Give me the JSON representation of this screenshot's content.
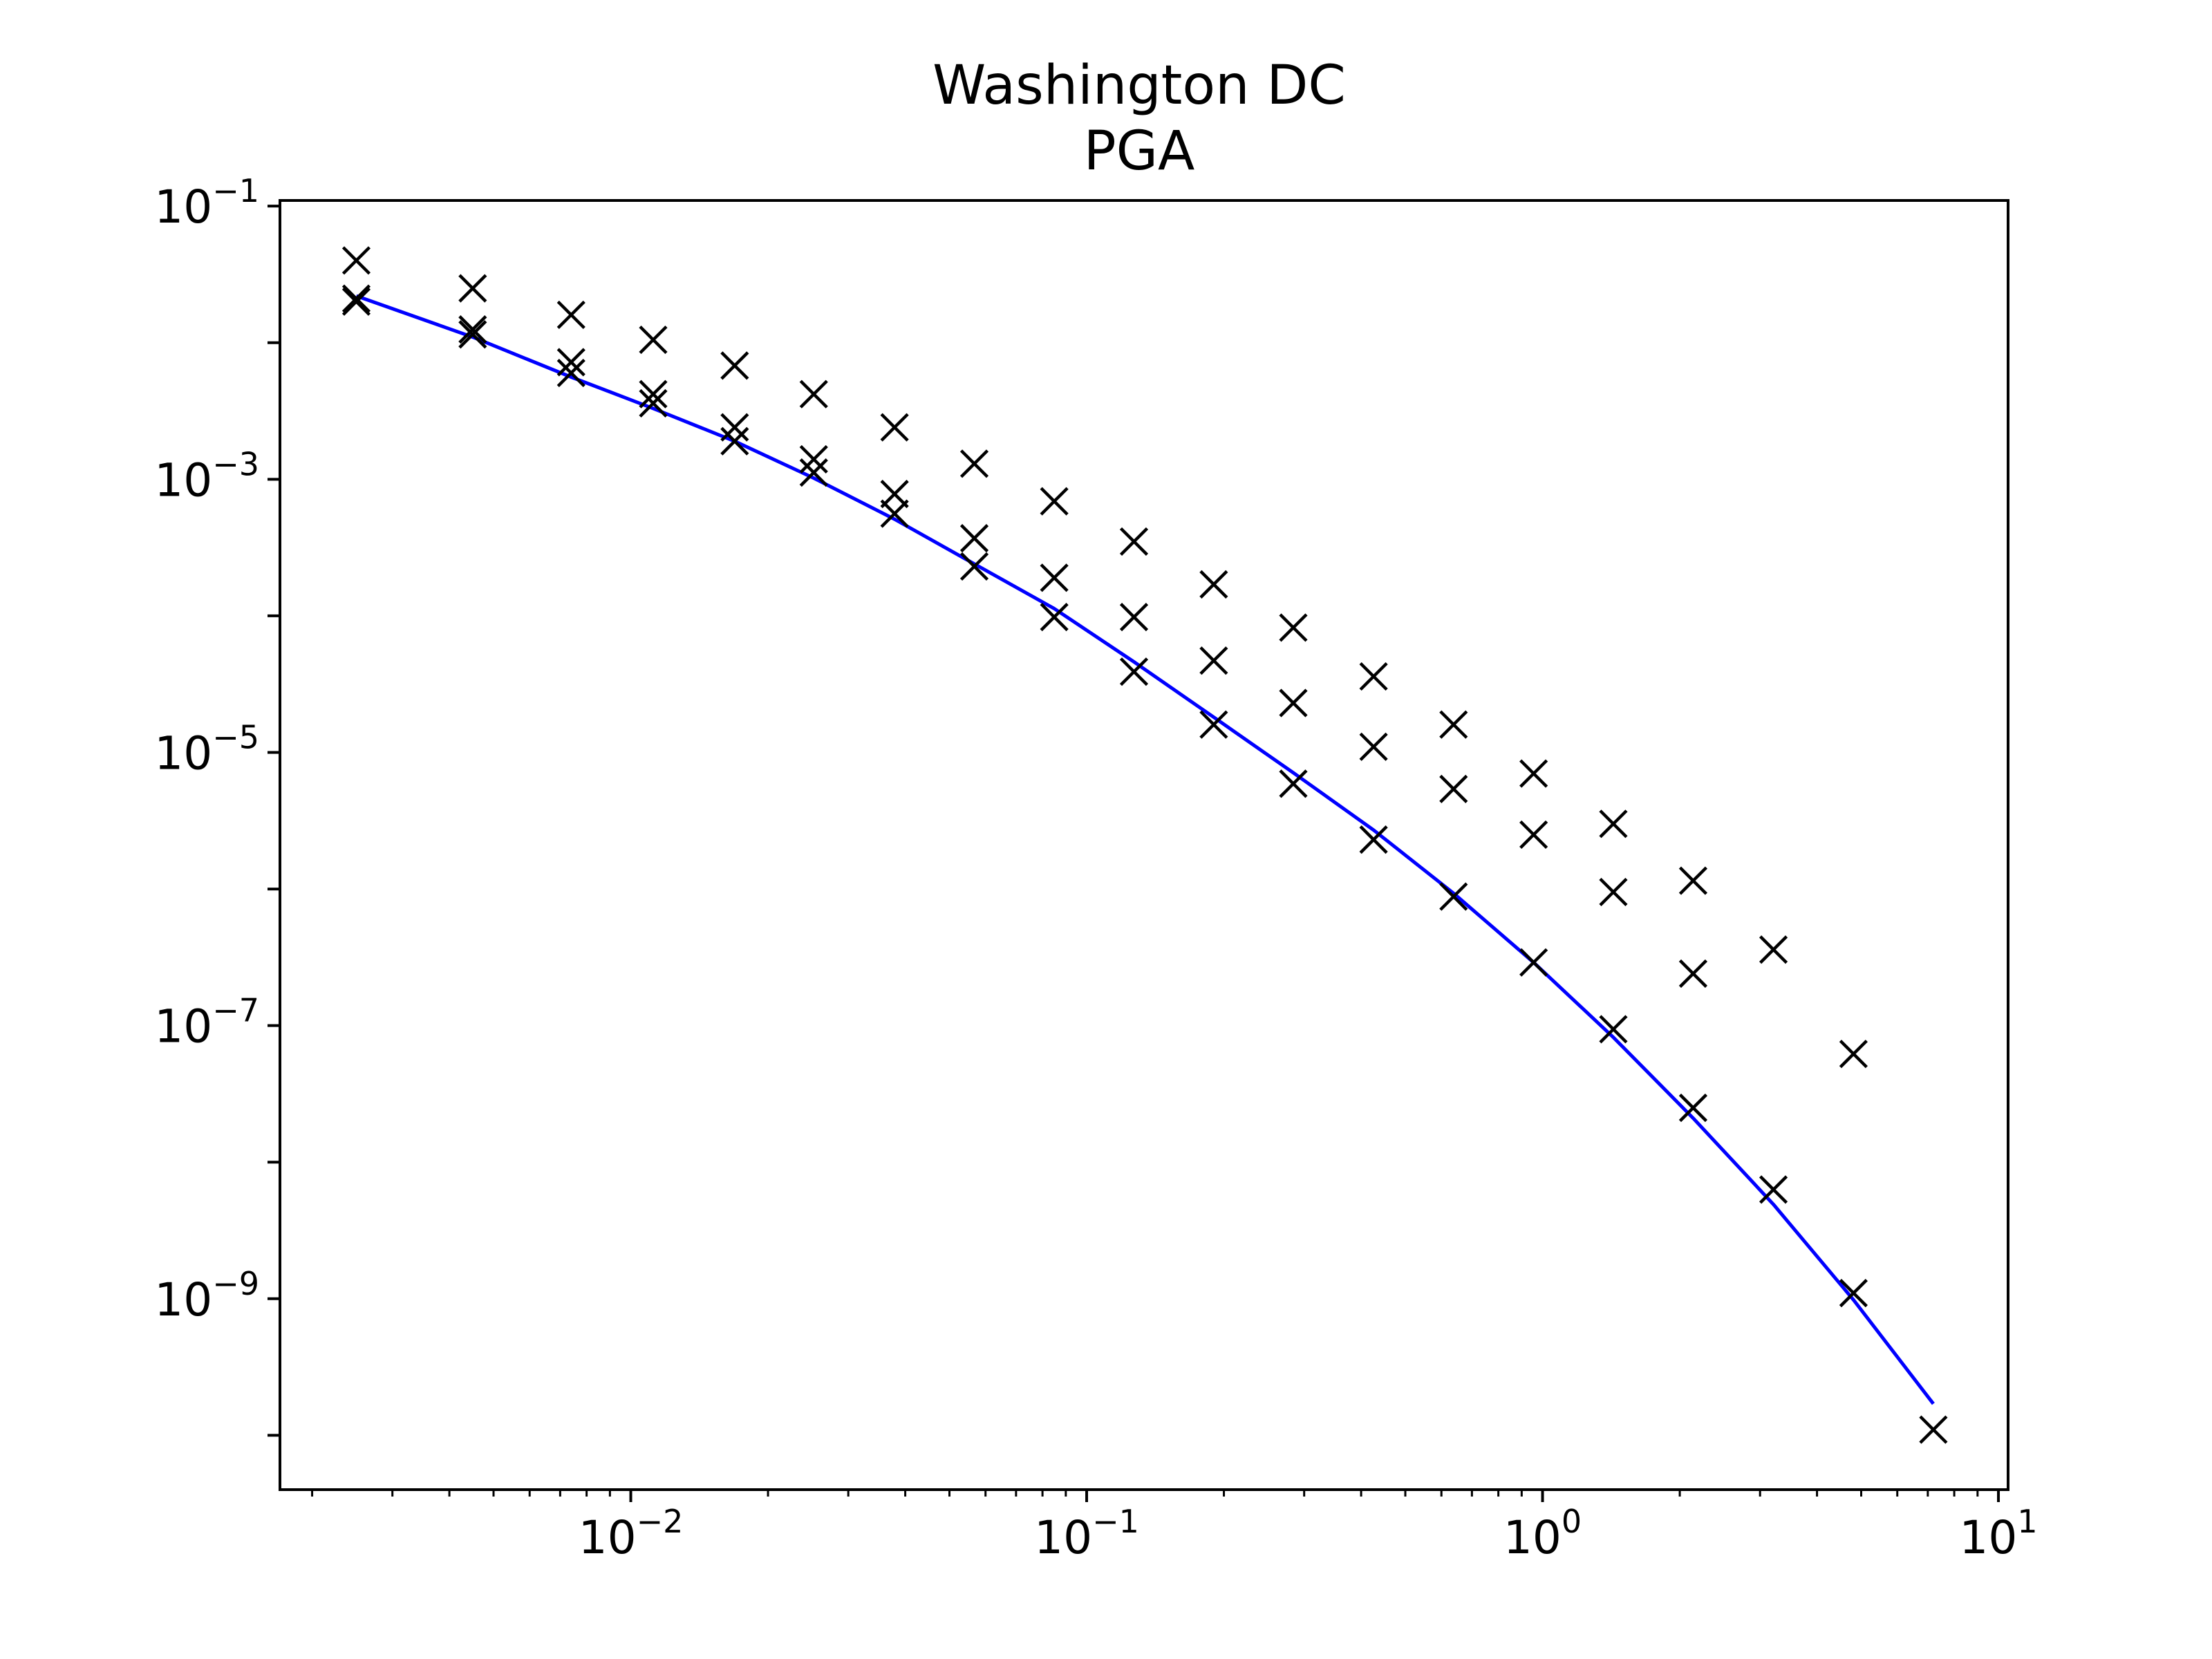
{
  "chart_data": {
    "type": "scatter",
    "title": "Washington DC",
    "subtitle": "PGA",
    "xlabel": "",
    "ylabel": "",
    "x_scale": "log",
    "y_scale": "log",
    "xlim": [
      0.0017,
      10.5
    ],
    "ylim": [
      4e-11,
      0.11
    ],
    "grid": false,
    "x_ticks": [
      {
        "base": "10",
        "exp": "−2",
        "value": 0.01
      },
      {
        "base": "10",
        "exp": "−1",
        "value": 0.1
      },
      {
        "base": "10",
        "exp": "0",
        "value": 1
      },
      {
        "base": "10",
        "exp": "1",
        "value": 10
      }
    ],
    "y_ticks": [
      {
        "base": "10",
        "exp": "−1",
        "value": 0.1
      },
      {
        "base": "10",
        "exp": "−3",
        "value": 0.001
      },
      {
        "base": "10",
        "exp": "−5",
        "value": 1e-05
      },
      {
        "base": "10",
        "exp": "−7",
        "value": 1e-07
      },
      {
        "base": "10",
        "exp": "−9",
        "value": 1e-09
      }
    ],
    "colors": {
      "line": "#0000ff",
      "markers": "#000000",
      "axes": "#000000"
    },
    "series": [
      {
        "mark": "line",
        "color": "#0000ff",
        "points": [
          [
            0.0025,
            0.022
          ],
          [
            0.0045,
            0.011
          ],
          [
            0.0074,
            0.0056
          ],
          [
            0.0112,
            0.0033
          ],
          [
            0.0169,
            0.0019
          ],
          [
            0.0252,
            0.00102
          ],
          [
            0.0379,
            0.00051
          ],
          [
            0.0567,
            0.00024
          ],
          [
            0.0849,
            0.000113
          ],
          [
            0.127,
            4.6e-05
          ],
          [
            0.19,
            1.81e-05
          ],
          [
            0.284,
            7.1e-06
          ],
          [
            0.426,
            2.7e-06
          ],
          [
            0.638,
            9.3e-07
          ],
          [
            0.956,
            2.9e-07
          ],
          [
            1.43,
            8.2e-08
          ],
          [
            2.14,
            2.1e-08
          ],
          [
            3.21,
            4.9e-09
          ],
          [
            4.81,
            9.8e-10
          ],
          [
            7.2,
            1.7e-10
          ]
        ]
      },
      {
        "mark": "x",
        "color": "#000000",
        "points": [
          [
            0.0025,
            0.04
          ],
          [
            0.0025,
            0.021
          ],
          [
            0.0025,
            0.02
          ],
          [
            0.0045,
            0.025
          ],
          [
            0.0045,
            0.0125
          ],
          [
            0.0045,
            0.0115
          ],
          [
            0.0074,
            0.016
          ],
          [
            0.0074,
            0.0072
          ],
          [
            0.0074,
            0.006
          ],
          [
            0.0112,
            0.0105
          ],
          [
            0.0112,
            0.0042
          ],
          [
            0.0112,
            0.0036
          ],
          [
            0.0169,
            0.0068
          ],
          [
            0.0169,
            0.0024
          ],
          [
            0.0169,
            0.0019
          ],
          [
            0.0252,
            0.0042
          ],
          [
            0.0252,
            0.0014
          ],
          [
            0.0252,
            0.00112
          ],
          [
            0.0379,
            0.0024
          ],
          [
            0.0379,
            0.00078
          ],
          [
            0.0379,
            0.00056
          ],
          [
            0.0567,
            0.0013
          ],
          [
            0.0567,
            0.00037
          ],
          [
            0.0567,
            0.00023
          ],
          [
            0.0849,
            0.00069
          ],
          [
            0.0849,
            0.00019
          ],
          [
            0.0849,
            9.8e-05
          ],
          [
            0.127,
            0.00035
          ],
          [
            0.127,
            9.8e-05
          ],
          [
            0.127,
            3.9e-05
          ],
          [
            0.19,
            0.00017
          ],
          [
            0.19,
            4.7e-05
          ],
          [
            0.19,
            1.6e-05
          ],
          [
            0.284,
            8.2e-05
          ],
          [
            0.284,
            2.3e-05
          ],
          [
            0.284,
            5.9e-06
          ],
          [
            0.426,
            3.6e-05
          ],
          [
            0.426,
            1.1e-05
          ],
          [
            0.426,
            2.3e-06
          ],
          [
            0.638,
            1.6e-05
          ],
          [
            0.638,
            5.4e-06
          ],
          [
            0.638,
            8.8e-07
          ],
          [
            0.956,
            7e-06
          ],
          [
            0.956,
            2.5e-06
          ],
          [
            0.956,
            2.9e-07
          ],
          [
            1.43,
            3e-06
          ],
          [
            1.43,
            9.5e-07
          ],
          [
            1.43,
            9.4e-08
          ],
          [
            2.14,
            1.15e-06
          ],
          [
            2.14,
            2.4e-07
          ],
          [
            2.14,
            2.5e-08
          ],
          [
            3.21,
            3.6e-07
          ],
          [
            3.21,
            6.3e-09
          ],
          [
            4.81,
            6.2e-08
          ],
          [
            4.81,
            1.1e-09
          ],
          [
            7.2,
            1.1e-10
          ]
        ]
      }
    ]
  }
}
